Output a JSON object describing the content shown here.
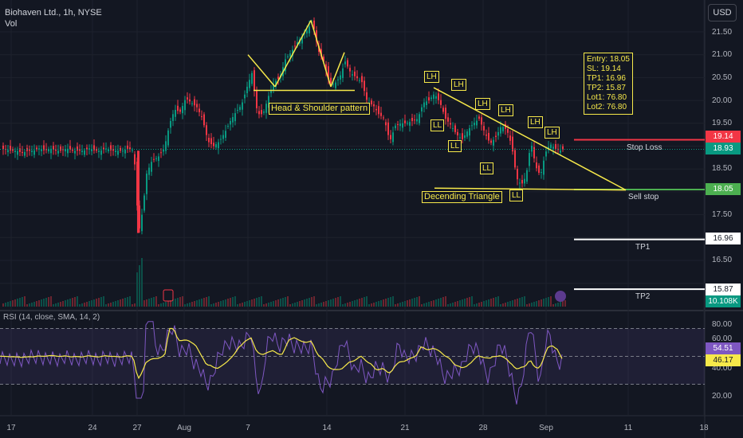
{
  "header": {
    "title": "Biohaven Ltd., 1h, NYSE",
    "volume_label": "Vol",
    "currency_button": "USD"
  },
  "chart_data": {
    "type": "candlestick",
    "price_axis": {
      "ticks": [
        "21.50",
        "21.00",
        "20.50",
        "20.00",
        "19.50",
        "19.00",
        "18.50",
        "18.00",
        "17.50",
        "17.00",
        "16.50",
        "16.00"
      ],
      "ylim": [
        15.6,
        21.7
      ]
    },
    "x_axis": {
      "ticks": [
        "17",
        "24",
        "27",
        "Aug",
        "7",
        "14",
        "21",
        "28",
        "Sep",
        "11",
        "18"
      ]
    },
    "price_path": [
      [
        0,
        18.95
      ],
      [
        13,
        18.9
      ],
      [
        20,
        18.9
      ],
      [
        27,
        18.85
      ],
      [
        34,
        18.9
      ],
      [
        41,
        18.9
      ],
      [
        48,
        18.95
      ],
      [
        55,
        18.9
      ],
      [
        62,
        18.95
      ],
      [
        69,
        18.9
      ],
      [
        76,
        18.9
      ],
      [
        83,
        18.95
      ],
      [
        90,
        18.9
      ],
      [
        97,
        18.9
      ],
      [
        104,
        18.9
      ],
      [
        111,
        18.95
      ],
      [
        118,
        18.9
      ],
      [
        125,
        18.9
      ],
      [
        132,
        18.95
      ],
      [
        139,
        18.9
      ],
      [
        146,
        18.9
      ],
      [
        153,
        18.9
      ],
      [
        160,
        18.95
      ],
      [
        167,
        18.9
      ],
      [
        173,
        17.1
      ],
      [
        178,
        17.6
      ],
      [
        183,
        18.4
      ],
      [
        190,
        18.7
      ],
      [
        197,
        18.75
      ],
      [
        205,
        18.95
      ],
      [
        212,
        19.5
      ],
      [
        218,
        19.8
      ],
      [
        225,
        19.75
      ],
      [
        232,
        20.05
      ],
      [
        239,
        19.95
      ],
      [
        246,
        19.85
      ],
      [
        253,
        19.6
      ],
      [
        260,
        19.1
      ],
      [
        267,
        19.0
      ],
      [
        274,
        19.1
      ],
      [
        281,
        19.3
      ],
      [
        288,
        19.55
      ],
      [
        295,
        19.75
      ],
      [
        302,
        19.9
      ],
      [
        309,
        20.3
      ],
      [
        315,
        20.6
      ],
      [
        322,
        19.7
      ],
      [
        329,
        19.7
      ],
      [
        336,
        20.1
      ],
      [
        343,
        20.4
      ],
      [
        350,
        20.5
      ],
      [
        357,
        20.9
      ],
      [
        364,
        21.05
      ],
      [
        371,
        21.25
      ],
      [
        378,
        21.4
      ],
      [
        385,
        21.55
      ],
      [
        391,
        21.75
      ],
      [
        398,
        21.1
      ],
      [
        405,
        20.85
      ],
      [
        412,
        20.4
      ],
      [
        418,
        20.35
      ],
      [
        425,
        20.5
      ],
      [
        432,
        20.85
      ],
      [
        439,
        20.6
      ],
      [
        446,
        20.5
      ],
      [
        453,
        20.4
      ],
      [
        460,
        19.95
      ],
      [
        467,
        19.9
      ],
      [
        474,
        19.7
      ],
      [
        481,
        19.6
      ],
      [
        488,
        19.1
      ],
      [
        495,
        19.45
      ],
      [
        502,
        19.5
      ],
      [
        509,
        19.5
      ],
      [
        516,
        19.55
      ],
      [
        523,
        19.6
      ],
      [
        530,
        19.95
      ],
      [
        537,
        20.0
      ],
      [
        544,
        20.15
      ],
      [
        551,
        19.95
      ],
      [
        558,
        19.6
      ],
      [
        565,
        19.45
      ],
      [
        572,
        19.25
      ],
      [
        579,
        19.15
      ],
      [
        586,
        19.35
      ],
      [
        593,
        19.5
      ],
      [
        600,
        19.6
      ],
      [
        607,
        19.3
      ],
      [
        614,
        19.05
      ],
      [
        621,
        19.2
      ],
      [
        628,
        19.45
      ],
      [
        635,
        19.35
      ],
      [
        641,
        19.0
      ],
      [
        647,
        18.3
      ],
      [
        653,
        18.15
      ],
      [
        659,
        18.35
      ],
      [
        665,
        19.1
      ],
      [
        671,
        18.55
      ],
      [
        677,
        18.35
      ],
      [
        683,
        18.85
      ],
      [
        689,
        19.05
      ],
      [
        695,
        18.95
      ],
      [
        701,
        18.9
      ],
      [
        706,
        18.93
      ]
    ],
    "volume": {
      "last": "10.108K"
    },
    "rsi": {
      "label": "RSI (14, close, SMA, 14, 2)",
      "value": 54.51,
      "sma": 46.17,
      "ticks": [
        "80.00",
        "60.00",
        "40.00",
        "20.00"
      ],
      "levels": [
        70,
        50,
        30
      ]
    },
    "annotations": {
      "pattern1": "Head & Shoulder pattern",
      "pattern2": "Decending Triangle",
      "swing_labels": [
        "LH",
        "LH",
        "LH",
        "LH",
        "LH",
        "LH",
        "LL",
        "LL",
        "LL",
        "LL"
      ],
      "trade_box": [
        "Entry: 18.05",
        "SL: 19.14",
        "TP1: 16.96",
        "TP2: 15.87",
        "Lot1: 76.80",
        "Lot2: 76.80"
      ]
    },
    "levels": [
      {
        "name": "Stop Loss",
        "price": 19.14,
        "price_label": "19.14",
        "color": "#f23645"
      },
      {
        "name": "Sell stop",
        "price": 18.05,
        "price_label": "18.05",
        "color": "#4caf50"
      },
      {
        "name": "TP1",
        "price": 16.96,
        "price_label": "16.96",
        "color": "#ffffff"
      },
      {
        "name": "TP2",
        "price": 15.87,
        "price_label": "15.87",
        "color": "#ffffff"
      }
    ],
    "last_price": {
      "value": 18.93,
      "label": "18.93",
      "color": "#089981"
    },
    "colors": {
      "up": "#089981",
      "down": "#f23645",
      "trend": "#f7e94a",
      "rsi": "#7e57c2",
      "rsi_sma": "#f7e94a"
    }
  }
}
